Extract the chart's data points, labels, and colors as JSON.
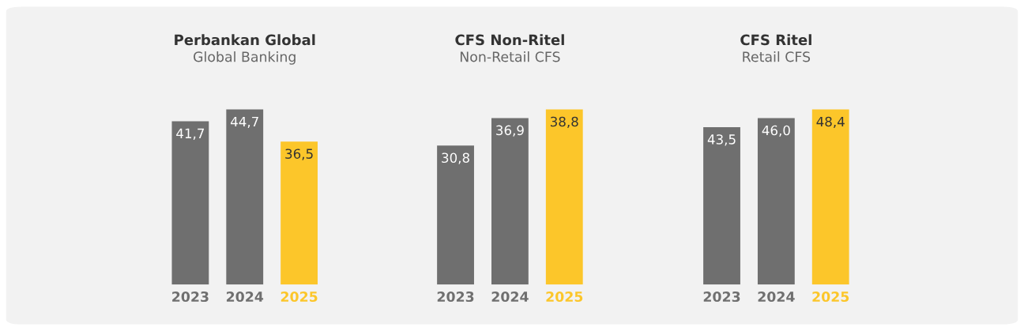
{
  "chart_data": [
    {
      "type": "bar",
      "title": "Perbankan Global",
      "subtitle": "Global Banking",
      "categories": [
        "2023",
        "2024",
        "2025"
      ],
      "values": [
        41.7,
        44.7,
        36.5
      ],
      "value_labels": [
        "41,7",
        "44,7",
        "36,5"
      ],
      "colors": [
        "#6f6f6f",
        "#6f6f6f",
        "#fcc62a"
      ]
    },
    {
      "type": "bar",
      "title": "CFS Non-Ritel",
      "subtitle": "Non-Retail CFS",
      "categories": [
        "2023",
        "2024",
        "2025"
      ],
      "values": [
        30.8,
        36.9,
        38.8
      ],
      "value_labels": [
        "30,8",
        "36,9",
        "38,8"
      ],
      "colors": [
        "#6f6f6f",
        "#6f6f6f",
        "#fcc62a"
      ]
    },
    {
      "type": "bar",
      "title": "CFS Ritel",
      "subtitle": "Retail CFS",
      "categories": [
        "2023",
        "2024",
        "2025"
      ],
      "values": [
        43.5,
        46.0,
        48.4
      ],
      "value_labels": [
        "43,5",
        "46,0",
        "48,4"
      ],
      "colors": [
        "#6f6f6f",
        "#6f6f6f",
        "#fcc62a"
      ]
    }
  ]
}
